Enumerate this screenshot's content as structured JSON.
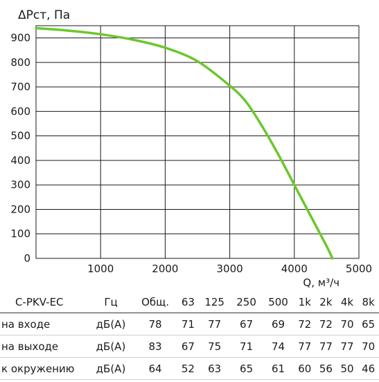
{
  "chart_data": {
    "type": "line",
    "ylabel": "ΔРст, Па",
    "xlabel": "Q, м³/ч",
    "xlim": [
      0,
      5000
    ],
    "ylim": [
      0,
      950
    ],
    "xticks": [
      1000,
      2000,
      3000,
      4000,
      5000
    ],
    "yticks": [
      0,
      100,
      200,
      300,
      400,
      500,
      600,
      700,
      800,
      900
    ],
    "grid": true,
    "series": [
      {
        "color": "#6cc72c",
        "x": [
          0,
          500,
          1000,
          1500,
          2000,
          2500,
          3000,
          3250,
          3500,
          3750,
          4000,
          4250,
          4500,
          4590
        ],
        "y": [
          940,
          930,
          915,
          893,
          860,
          805,
          705,
          640,
          540,
          425,
          300,
          175,
          50,
          0
        ]
      }
    ]
  },
  "table": {
    "model": "C-PKV-EC",
    "unit_header": "Гц",
    "columns": [
      "Общ.",
      "63",
      "125",
      "250",
      "500",
      "1k",
      "2k",
      "4k",
      "8k"
    ],
    "rows": [
      {
        "label": "на входе",
        "unit": "дБ(А)",
        "values": [
          "78",
          "71",
          "77",
          "67",
          "69",
          "72",
          "72",
          "70",
          "65"
        ]
      },
      {
        "label": "на выходе",
        "unit": "дБ(А)",
        "values": [
          "83",
          "67",
          "75",
          "71",
          "74",
          "77",
          "77",
          "77",
          "70"
        ]
      },
      {
        "label": "к окружению",
        "unit": "дБ(А)",
        "values": [
          "64",
          "52",
          "63",
          "65",
          "61",
          "60",
          "56",
          "50",
          "46"
        ]
      }
    ]
  }
}
